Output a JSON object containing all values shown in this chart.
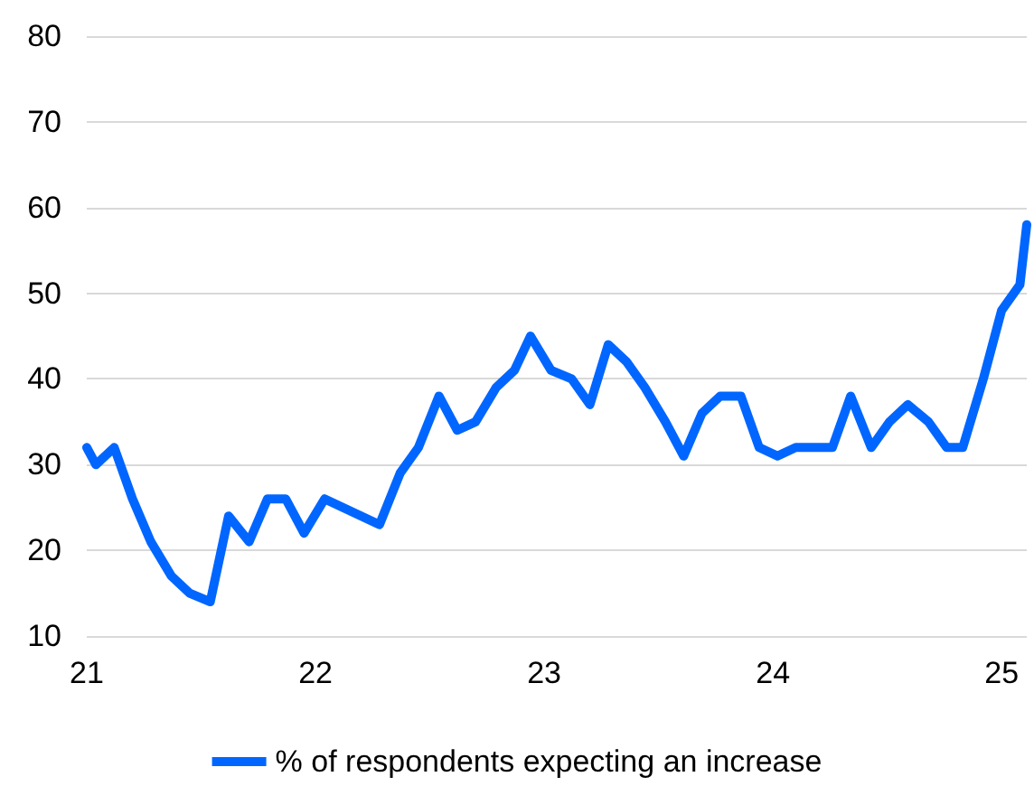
{
  "chart_data": {
    "type": "line",
    "xlim": [
      21,
      25.11
    ],
    "xticks": [
      21,
      22,
      23,
      24,
      25
    ],
    "ylim": [
      10,
      80
    ],
    "yticks": [
      10,
      20,
      30,
      40,
      50,
      60,
      70,
      80
    ],
    "grid": "y",
    "legend": "bottom",
    "marker": "none",
    "line_style": "solid",
    "series": [
      {
        "name": "% of respondents expecting an increase",
        "color": "#0066ff",
        "x": [
          21.0,
          21.04,
          21.12,
          21.2,
          21.28,
          21.37,
          21.45,
          21.54,
          21.62,
          21.71,
          21.79,
          21.87,
          21.95,
          22.04,
          22.28,
          22.37,
          22.45,
          22.54,
          22.62,
          22.7,
          22.79,
          22.87,
          22.94,
          23.03,
          23.12,
          23.2,
          23.28,
          23.36,
          23.44,
          23.53,
          23.61,
          23.69,
          23.77,
          23.86,
          23.94,
          24.02,
          24.1,
          24.19,
          24.26,
          24.34,
          24.43,
          24.51,
          24.59,
          24.68,
          24.76,
          24.83,
          24.92,
          25.0,
          25.08,
          25.11
        ],
        "values": [
          32,
          30,
          32,
          26,
          21,
          17,
          15,
          14,
          24,
          21,
          26,
          26,
          22,
          26,
          23,
          29,
          32,
          38,
          34,
          35,
          39,
          41,
          45,
          41,
          40,
          37,
          44,
          42,
          39,
          35,
          31,
          36,
          38,
          38,
          32,
          31,
          32,
          32,
          32,
          38,
          32,
          35,
          37,
          35,
          32,
          32,
          40,
          48,
          51,
          58
        ]
      }
    ]
  }
}
